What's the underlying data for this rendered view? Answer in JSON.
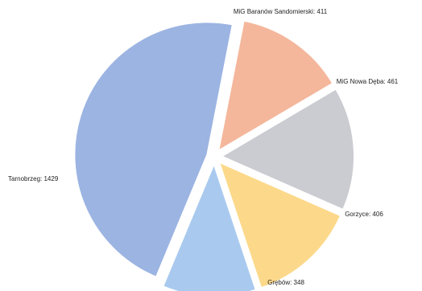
{
  "chart_data": {
    "type": "pie",
    "title": "",
    "legend": "none",
    "slices": [
      {
        "label": "MiG Baranów Sandomierski: 411",
        "name": "MiG Baranów Sandomierski",
        "value": 411,
        "color": "#F4B79C",
        "icon": "pie-slice-baranow"
      },
      {
        "label": "MiG Nowa Dęba: 461",
        "name": "MiG Nowa Dęba",
        "value": 461,
        "color": "#CBCCD1",
        "icon": "pie-slice-nowa-deba"
      },
      {
        "label": "Gorzyce: 406",
        "name": "Gorzyce",
        "value": 406,
        "color": "#FCD98A",
        "icon": "pie-slice-gorzyce"
      },
      {
        "label": "Grębów: 348",
        "name": "Grębów",
        "value": 348,
        "color": "#A9C9EE",
        "icon": "pie-slice-grebow"
      },
      {
        "label": "Tarnobrzeg: 1429",
        "name": "Tarnobrzeg",
        "value": 1429,
        "color": "#9CB4E2",
        "icon": "pie-slice-tarnobrzeg"
      }
    ]
  }
}
